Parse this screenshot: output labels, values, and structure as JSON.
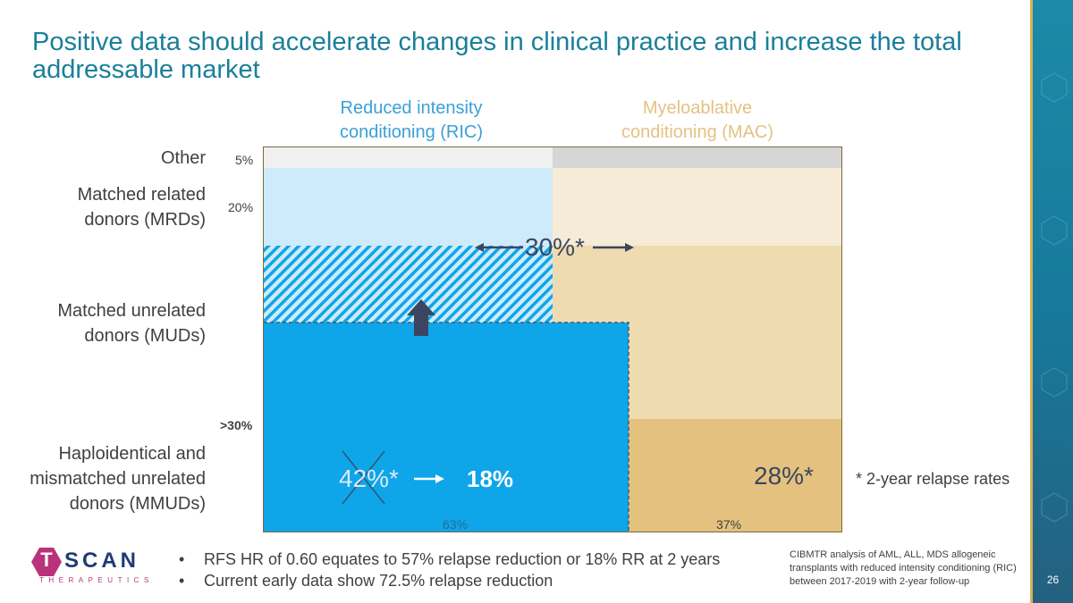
{
  "title": "Positive data should accelerate changes in clinical practice and increase the total addressable market",
  "columns": {
    "ric_line1": "Reduced intensity",
    "ric_line2": "conditioning (RIC)",
    "mac_line1": "Myeloablative",
    "mac_line2": "conditioning (MAC)"
  },
  "rows": {
    "other": "Other",
    "mrd_line1": "Matched related",
    "mrd_line2": "donors (MRDs)",
    "mud_line1": "Matched unrelated",
    "mud_line2": "donors (MUDs)",
    "mmud_line1": "Haploidentical and",
    "mmud_line2": "mismatched unrelated",
    "mmud_line3": "donors (MMUDs)"
  },
  "row_percents": {
    "other": "5%",
    "mrd": "20%",
    "mmud": ">30%"
  },
  "chart_labels": {
    "rate_30": "30%*",
    "rate_42": "42%*",
    "rate_18": "18%",
    "rate_28": "28%*",
    "ric_share": "63%",
    "mac_share": "37%"
  },
  "colors": {
    "ric_dark": "#0ea5e9",
    "ric_light": "#cdebfb",
    "mac_light": "#f5ebd6",
    "mac_mid": "#efdbb0",
    "mac_dark": "#e4c17f",
    "other_left": "#f0f0f0",
    "other_right": "#d6d6d6",
    "arrow": "#3c4560"
  },
  "footnote": "* 2-year relapse rates",
  "bullets": [
    "RFS HR of 0.60 equates to 57% relapse reduction or 18% RR at 2 years",
    "Current early data show 72.5% relapse reduction"
  ],
  "source": "CIBMTR analysis of AML, ALL, MDS allogeneic transplants with reduced intensity conditioning (RIC) between 2017-2019 with 2-year follow-up",
  "logo": {
    "word": "SCAN",
    "letter": "T",
    "sub": "THERAPEUTICS"
  },
  "page_number": "26"
}
